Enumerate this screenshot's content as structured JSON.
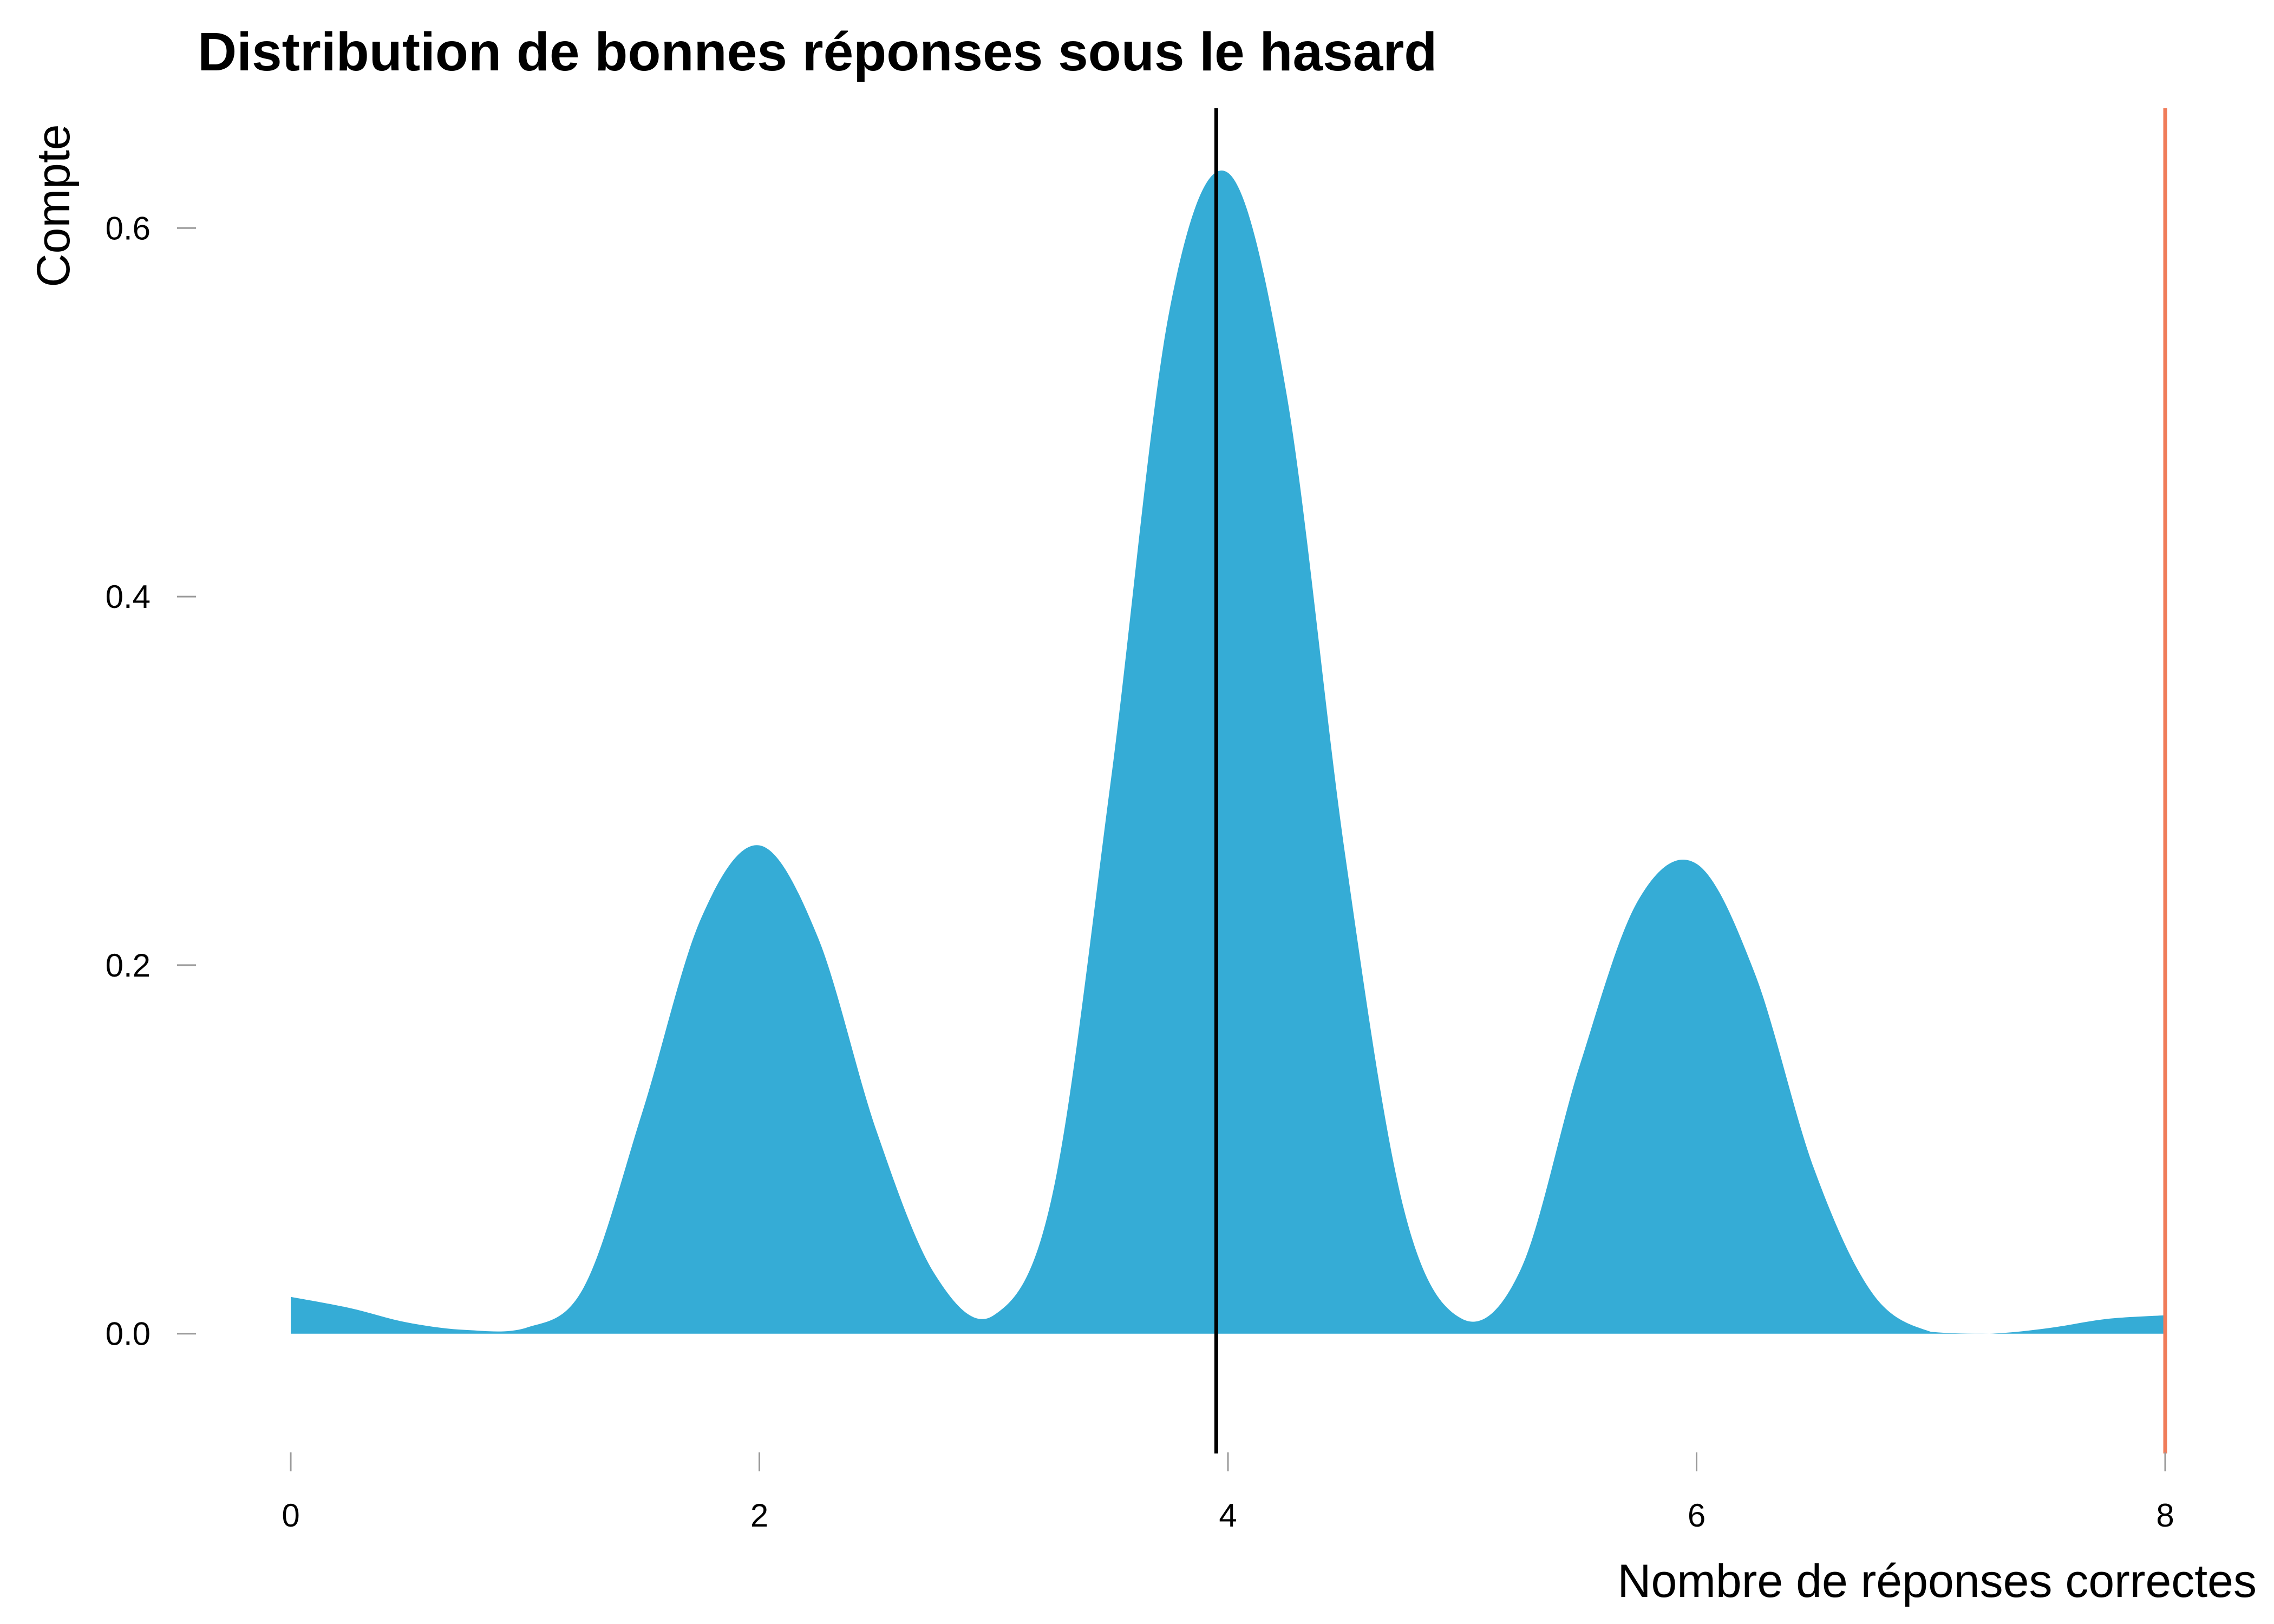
{
  "chart_data": {
    "type": "area",
    "title": "Distribution de bonnes réponses sous le hasard",
    "xlabel": "Nombre de réponses correctes",
    "ylabel": "Compte",
    "xlim": [
      0,
      8
    ],
    "ylim": [
      -0.065,
      0.665
    ],
    "x_ticks": [
      0,
      2,
      4,
      6,
      8
    ],
    "x_tick_labels": [
      "0",
      "2",
      "4",
      "6",
      "8"
    ],
    "y_ticks": [
      0.0,
      0.2,
      0.4,
      0.6
    ],
    "y_tick_labels": [
      "0.0",
      "0.2",
      "0.4",
      "0.6"
    ],
    "grid": false,
    "legend": "none",
    "fill_color": "#35acd6",
    "density": {
      "x": [
        0.0,
        0.25,
        0.5,
        0.75,
        1.0,
        1.25,
        1.5,
        1.75,
        2.0,
        2.25,
        2.5,
        2.75,
        3.0,
        3.25,
        3.5,
        3.75,
        4.0,
        4.25,
        4.5,
        4.75,
        5.0,
        5.25,
        5.5,
        5.75,
        6.0,
        6.25,
        6.5,
        6.75,
        7.0,
        7.25,
        7.5,
        7.75,
        8.0
      ],
      "y": [
        0.02,
        0.014,
        0.006,
        0.002,
        0.003,
        0.025,
        0.12,
        0.225,
        0.265,
        0.215,
        0.11,
        0.032,
        0.01,
        0.075,
        0.3,
        0.555,
        0.63,
        0.51,
        0.26,
        0.068,
        0.008,
        0.035,
        0.145,
        0.235,
        0.255,
        0.195,
        0.09,
        0.022,
        0.001,
        0.0,
        0.003,
        0.008,
        0.01
      ]
    },
    "reference_lines": [
      {
        "x": 3.95,
        "color": "#000000"
      },
      {
        "x": 8.0,
        "color": "#f07c5a"
      }
    ]
  }
}
